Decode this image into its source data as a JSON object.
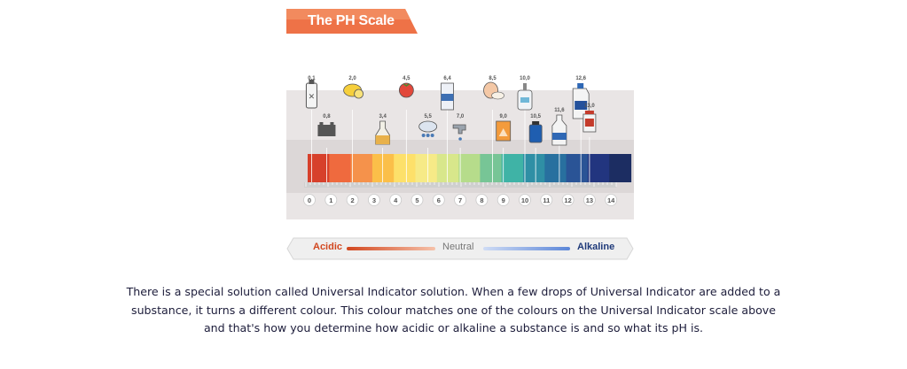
{
  "figure": {
    "title": "The PH Scale",
    "colors": {
      "banner": "#ee7247",
      "acidic": "#d2471f",
      "alkaline": "#1f3a7a",
      "neutral": "#777777"
    },
    "scale": {
      "numbers": [
        "0",
        "1",
        "2",
        "3",
        "4",
        "5",
        "6",
        "7",
        "8",
        "9",
        "10",
        "11",
        "12",
        "13",
        "14"
      ],
      "colors": [
        "#d7402b",
        "#ef6a3e",
        "#f5924b",
        "#fbbf49",
        "#fde06a",
        "#f6ea87",
        "#d8e78b",
        "#b6dc8b",
        "#77c596",
        "#3fb3a6",
        "#2f8fa5",
        "#28709f",
        "#2a5496",
        "#22357f",
        "#1c2d62"
      ]
    },
    "substances": [
      {
        "ph": "0,1",
        "icon": "battery-acid-bottle-icon"
      },
      {
        "ph": "0,8",
        "icon": "car-battery-icon"
      },
      {
        "ph": "2,0",
        "icon": "lemon-icon"
      },
      {
        "ph": "3,4",
        "icon": "vinegar-bottle-icon"
      },
      {
        "ph": "4,5",
        "icon": "tomato-icon"
      },
      {
        "ph": "5,5",
        "icon": "rain-cloud-icon"
      },
      {
        "ph": "6,4",
        "icon": "milk-bottle-icon"
      },
      {
        "ph": "7,0",
        "icon": "water-tap-icon"
      },
      {
        "ph": "8,5",
        "icon": "egg-icon"
      },
      {
        "ph": "9,0",
        "icon": "baking-soda-box-icon"
      },
      {
        "ph": "10,0",
        "icon": "soap-dispenser-icon"
      },
      {
        "ph": "10,5",
        "icon": "antacid-bottle-icon"
      },
      {
        "ph": "11,6",
        "icon": "ammonia-bottle-icon"
      },
      {
        "ph": "12,6",
        "icon": "bleach-jug-icon"
      },
      {
        "ph": "13,0",
        "icon": "drain-cleaner-icon"
      }
    ],
    "legend": {
      "acidic": "Acidic",
      "neutral": "Neutral",
      "alkaline": "Alkaline"
    }
  },
  "caption": "There is a special solution called Universal Indicator solution. When a few drops of Universal Indicator are added to a substance, it turns a different colour. This colour matches one of the colours on the Universal Indicator scale above and that's how you determine how acidic or alkaline a substance is and so what its pH is."
}
